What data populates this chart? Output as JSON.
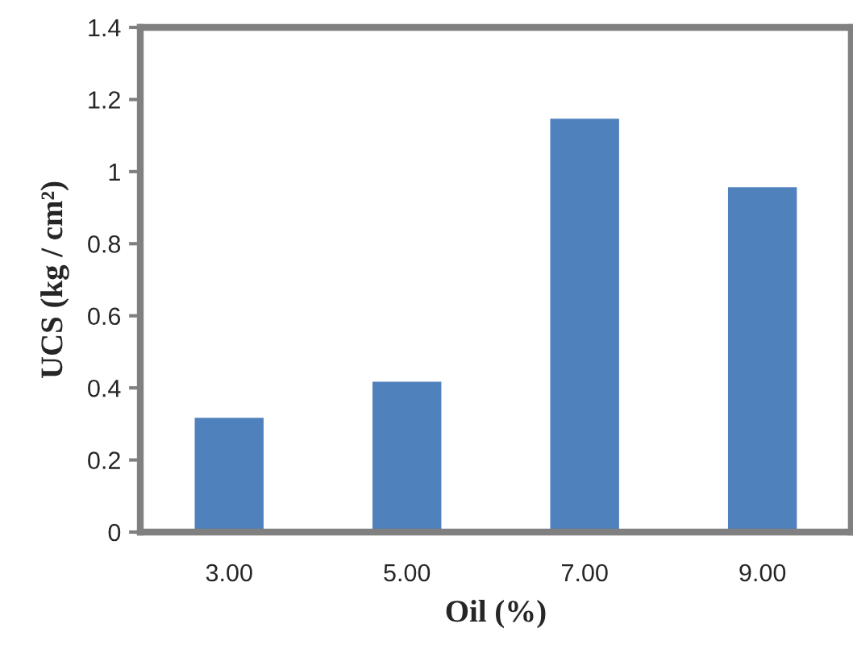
{
  "chart_data": {
    "type": "bar",
    "xlabel": "Oil (%)",
    "ylabel": "UCS (kg / cm²)",
    "categories": [
      "3.00",
      "5.00",
      "7.00",
      "9.00"
    ],
    "values": [
      0.32,
      0.42,
      1.15,
      0.96
    ],
    "color": "#4f81bd",
    "ylim": [
      0,
      1.4
    ],
    "yticks": [
      0,
      0.2,
      0.4,
      0.6,
      0.8,
      1,
      1.2,
      1.4
    ],
    "grid": false,
    "legend": false
  }
}
